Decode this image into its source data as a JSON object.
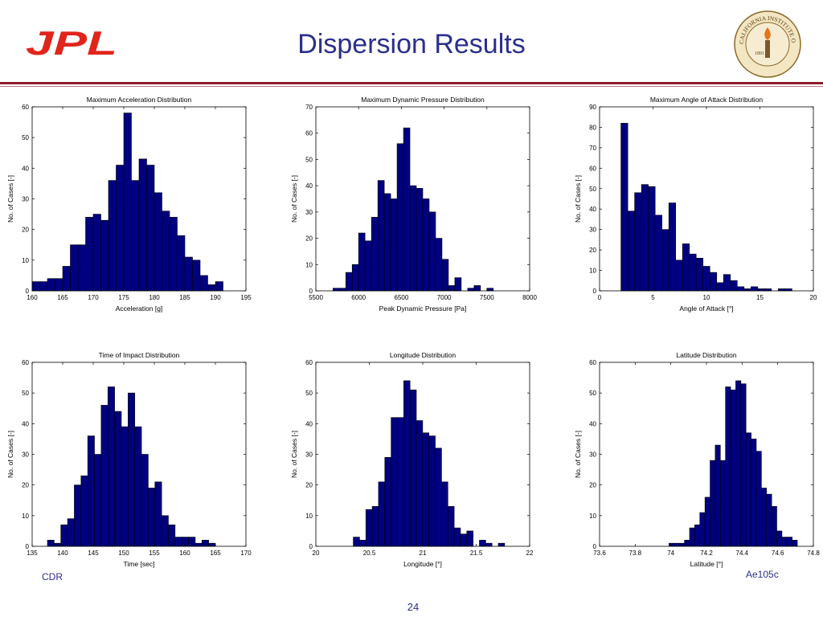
{
  "slide": {
    "title": "Dispersion Results",
    "logo_text": "JPL",
    "seal_text": "CALIFORNIA INSTITUTE OF TECHNOLOGY",
    "seal_year": "1891",
    "footer_left": "CDR",
    "footer_right": "Ae105c",
    "page_number": "24",
    "colors": {
      "title": "#2b2f8c",
      "logo": "#e1251b",
      "rule": "#8c1c2a",
      "bar": "#000080"
    }
  },
  "chart_data": [
    {
      "type": "bar",
      "title": "Maximum Acceleration Distribution",
      "xlabel": "Acceleration [g]",
      "ylabel": "No. of Cases [-]",
      "xlim": [
        160,
        195
      ],
      "ylim": [
        0,
        60
      ],
      "xticks": [
        160,
        165,
        170,
        175,
        180,
        185,
        190,
        195
      ],
      "yticks": [
        0,
        10,
        20,
        30,
        40,
        50,
        60
      ],
      "bin_start": 160,
      "bin_width": 1.25,
      "values": [
        3,
        3,
        4,
        4,
        8,
        15,
        15,
        24,
        25,
        23,
        36,
        41,
        58,
        36,
        43,
        41,
        32,
        26,
        24,
        18,
        11,
        10,
        5,
        2,
        3
      ]
    },
    {
      "type": "bar",
      "title": "Maximum Dynamic Pressure Distribution",
      "xlabel": "Peak Dynamic Pressure [Pa]",
      "ylabel": "No. of Cases [-]",
      "xlim": [
        5500,
        8000
      ],
      "ylim": [
        0,
        70
      ],
      "xticks": [
        5500,
        6000,
        6500,
        7000,
        7500,
        8000
      ],
      "yticks": [
        0,
        10,
        20,
        30,
        40,
        50,
        60,
        70
      ],
      "bin_start": 5700,
      "bin_width": 75,
      "values": [
        1,
        1,
        7,
        10,
        22,
        19,
        28,
        42,
        37,
        35,
        56,
        62,
        40,
        39,
        35,
        30,
        20,
        12,
        2,
        5,
        0,
        1,
        2,
        0,
        1
      ]
    },
    {
      "type": "bar",
      "title": "Maximum Angle of Attack Distribution",
      "xlabel": "Angle of Attack [°]",
      "ylabel": "No. of Cases [-]",
      "xlim": [
        0,
        20
      ],
      "ylim": [
        0,
        90
      ],
      "xticks": [
        0,
        5,
        10,
        15,
        20
      ],
      "yticks": [
        0,
        10,
        20,
        30,
        40,
        50,
        60,
        70,
        80,
        90
      ],
      "bin_start": 2,
      "bin_width": 0.64,
      "values": [
        82,
        39,
        48,
        52,
        51,
        37,
        30,
        43,
        15,
        23,
        18,
        16,
        12,
        9,
        4,
        8,
        5,
        2,
        1,
        2,
        1,
        1,
        0,
        1,
        1
      ]
    },
    {
      "type": "bar",
      "title": "Time of Impact Distribution",
      "xlabel": "Time [sec]",
      "ylabel": "No. of Cases [-]",
      "xlim": [
        135,
        170
      ],
      "ylim": [
        0,
        60
      ],
      "xticks": [
        135,
        140,
        145,
        150,
        155,
        160,
        165,
        170
      ],
      "yticks": [
        0,
        10,
        20,
        30,
        40,
        50,
        60
      ],
      "bin_start": 137.5,
      "bin_width": 1.1,
      "values": [
        2,
        1,
        7,
        9,
        20,
        23,
        36,
        30,
        46,
        52,
        44,
        39,
        50,
        39,
        30,
        19,
        21,
        10,
        7,
        3,
        3,
        3,
        1,
        2,
        1
      ]
    },
    {
      "type": "bar",
      "title": "Longitude Distribution",
      "xlabel": "Longitude [°]",
      "ylabel": "No. of Cases [-]",
      "xlim": [
        20,
        22
      ],
      "ylim": [
        0,
        60
      ],
      "xticks": [
        20,
        20.5,
        21,
        21.5,
        22
      ],
      "yticks": [
        0,
        10,
        20,
        30,
        40,
        50,
        60
      ],
      "bin_start": 20.35,
      "bin_width": 0.059,
      "values": [
        3,
        2,
        12,
        13,
        21,
        29,
        42,
        42,
        54,
        51,
        41,
        37,
        36,
        32,
        21,
        13,
        6,
        4,
        5,
        0,
        2,
        1,
        0,
        1
      ]
    },
    {
      "type": "bar",
      "title": "Latitude Distribution",
      "xlabel": "Latitude [°]",
      "ylabel": "No. of Cases [-]",
      "xlim": [
        73.6,
        74.8
      ],
      "ylim": [
        0,
        60
      ],
      "xticks": [
        73.6,
        73.8,
        74,
        74.2,
        74.4,
        74.6,
        74.8
      ],
      "yticks": [
        0,
        10,
        20,
        30,
        40,
        50,
        60
      ],
      "bin_start": 73.99,
      "bin_width": 0.0288,
      "values": [
        1,
        1,
        1,
        2,
        6,
        7,
        11,
        16,
        28,
        33,
        28,
        52,
        51,
        54,
        53,
        37,
        35,
        31,
        19,
        17,
        13,
        5,
        3,
        3,
        2
      ]
    }
  ]
}
